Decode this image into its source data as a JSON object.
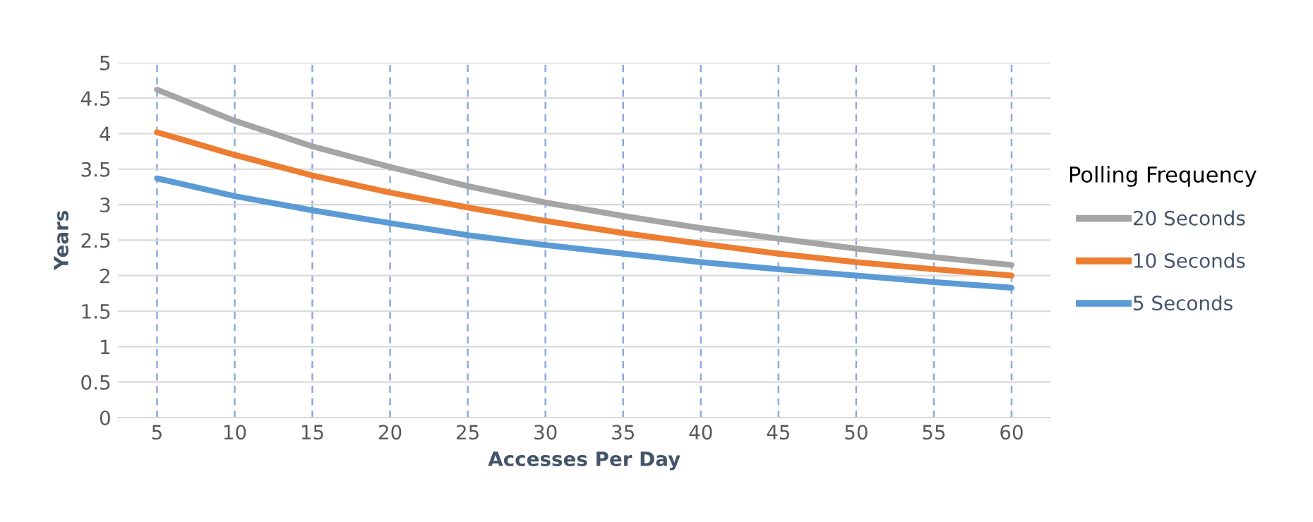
{
  "chart_data": {
    "type": "line",
    "xlabel": "Accesses Per Day",
    "ylabel": "Years",
    "legend_title": "Polling Frequency",
    "legend": "right",
    "grid": true,
    "marker": "none",
    "line_style": "solid",
    "categories": [
      "5",
      "10",
      "15",
      "20",
      "25",
      "30",
      "35",
      "40",
      "45",
      "50",
      "55",
      "60"
    ],
    "ylim": [
      0,
      5
    ],
    "yticks": [
      0,
      0.5,
      1,
      1.5,
      2,
      2.5,
      3,
      3.5,
      4,
      4.5,
      5
    ],
    "series": [
      {
        "name": "20 Seconds",
        "color": "#a5a5a5",
        "values": [
          4.62,
          4.18,
          3.82,
          3.53,
          3.26,
          3.03,
          2.84,
          2.67,
          2.52,
          2.38,
          2.26,
          2.15
        ]
      },
      {
        "name": "10 Seconds",
        "color": "#ed7d31",
        "values": [
          4.02,
          3.7,
          3.41,
          3.17,
          2.96,
          2.77,
          2.6,
          2.45,
          2.31,
          2.19,
          2.09,
          2.0
        ]
      },
      {
        "name": "5 Seconds",
        "color": "#5b9bd5",
        "values": [
          3.37,
          3.12,
          2.92,
          2.74,
          2.57,
          2.43,
          2.31,
          2.19,
          2.09,
          2.0,
          1.91,
          1.83
        ]
      }
    ]
  }
}
